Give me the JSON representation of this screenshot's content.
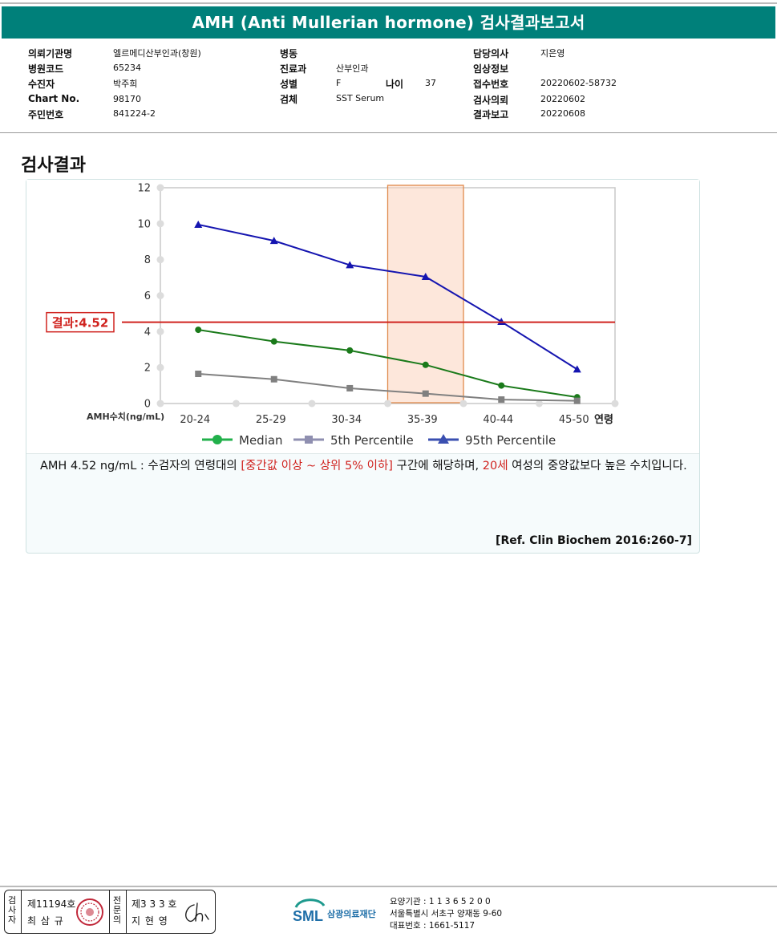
{
  "title": "AMH (Anti Mullerian hormone) 검사결과보고서",
  "patient": {
    "col1": [
      {
        "label": "의뢰기관명",
        "value": "엘르메디산부인과(창원)"
      },
      {
        "label": "병원코드",
        "value": "65234"
      },
      {
        "label": "수진자",
        "value": "박주희"
      },
      {
        "label": "Chart No.",
        "value": "98170"
      },
      {
        "label": "주민번호",
        "value": "841224-2"
      }
    ],
    "col2": [
      {
        "label": "병동",
        "value": ""
      },
      {
        "label": "진료과",
        "value": "산부인과"
      },
      {
        "label": "성별",
        "value": "F"
      },
      {
        "label": "검체",
        "value": "SST Serum"
      }
    ],
    "age": {
      "label": "나이",
      "value": "37"
    },
    "col3": [
      {
        "label": "담당의사",
        "value": "지은영"
      },
      {
        "label": "임상정보",
        "value": ""
      },
      {
        "label": "접수번호",
        "value": "20220602-58732"
      },
      {
        "label": "검사의뢰",
        "value": "20220602"
      },
      {
        "label": "결과보고",
        "value": "20220608"
      }
    ]
  },
  "section_title": "검사결과",
  "chart_data": {
    "type": "line",
    "categories": [
      "20-24",
      "25-29",
      "30-34",
      "35-39",
      "40-44",
      "45-50"
    ],
    "xlabel": "연령",
    "ylabel": "AMH수치(ng/mL)",
    "ylim": [
      0,
      12
    ],
    "yticks": [
      0,
      2,
      4,
      6,
      8,
      10,
      12
    ],
    "series": [
      {
        "name": "Median",
        "color": "#1a7a1a",
        "marker": "circle",
        "values": [
          4.1,
          3.45,
          2.95,
          2.15,
          1.0,
          0.35
        ]
      },
      {
        "name": "5th Percentile",
        "color": "#808080",
        "marker": "square",
        "values": [
          1.65,
          1.35,
          0.85,
          0.55,
          0.22,
          0.15
        ]
      },
      {
        "name": "95th Percentile",
        "color": "#1515b0",
        "marker": "triangle",
        "values": [
          9.95,
          9.05,
          7.7,
          7.05,
          4.55,
          1.9
        ]
      }
    ],
    "highlight_category": "35-39",
    "result": {
      "value": 4.52,
      "label": "결과:4.52",
      "color": "#d0231f"
    },
    "grid": false,
    "legend": "bottom"
  },
  "interpretation": {
    "p1": "AMH  4.52 ng/mL : 수검자의 연령대의 ",
    "h1": "[중간값 이상 ~ 상위 5% 이하]",
    "p2": "  구간에 해당하며, ",
    "h2": "20세",
    "p3": " 여성의 중앙값보다 높은 수치입니다."
  },
  "reference": "[Ref. Clin Biochem 2016:260-7]",
  "signatures": {
    "label1": "검사자",
    "id1": "제11194호",
    "name1": "최 삼 규",
    "label2": "전문의",
    "id2": "제3 3 3 호",
    "name2": "지 현 영"
  },
  "organization": {
    "logo_text": "SML",
    "name": "삼광의료재단",
    "line1": "요양기관 : 1 1 3 6 5 2 0 0",
    "line2": "서울특별시 서초구 양재동 9-60",
    "line3": "대표번호 : 1661-5117"
  },
  "colors": {
    "header": "#00807a",
    "highlight": "#d0231f"
  }
}
